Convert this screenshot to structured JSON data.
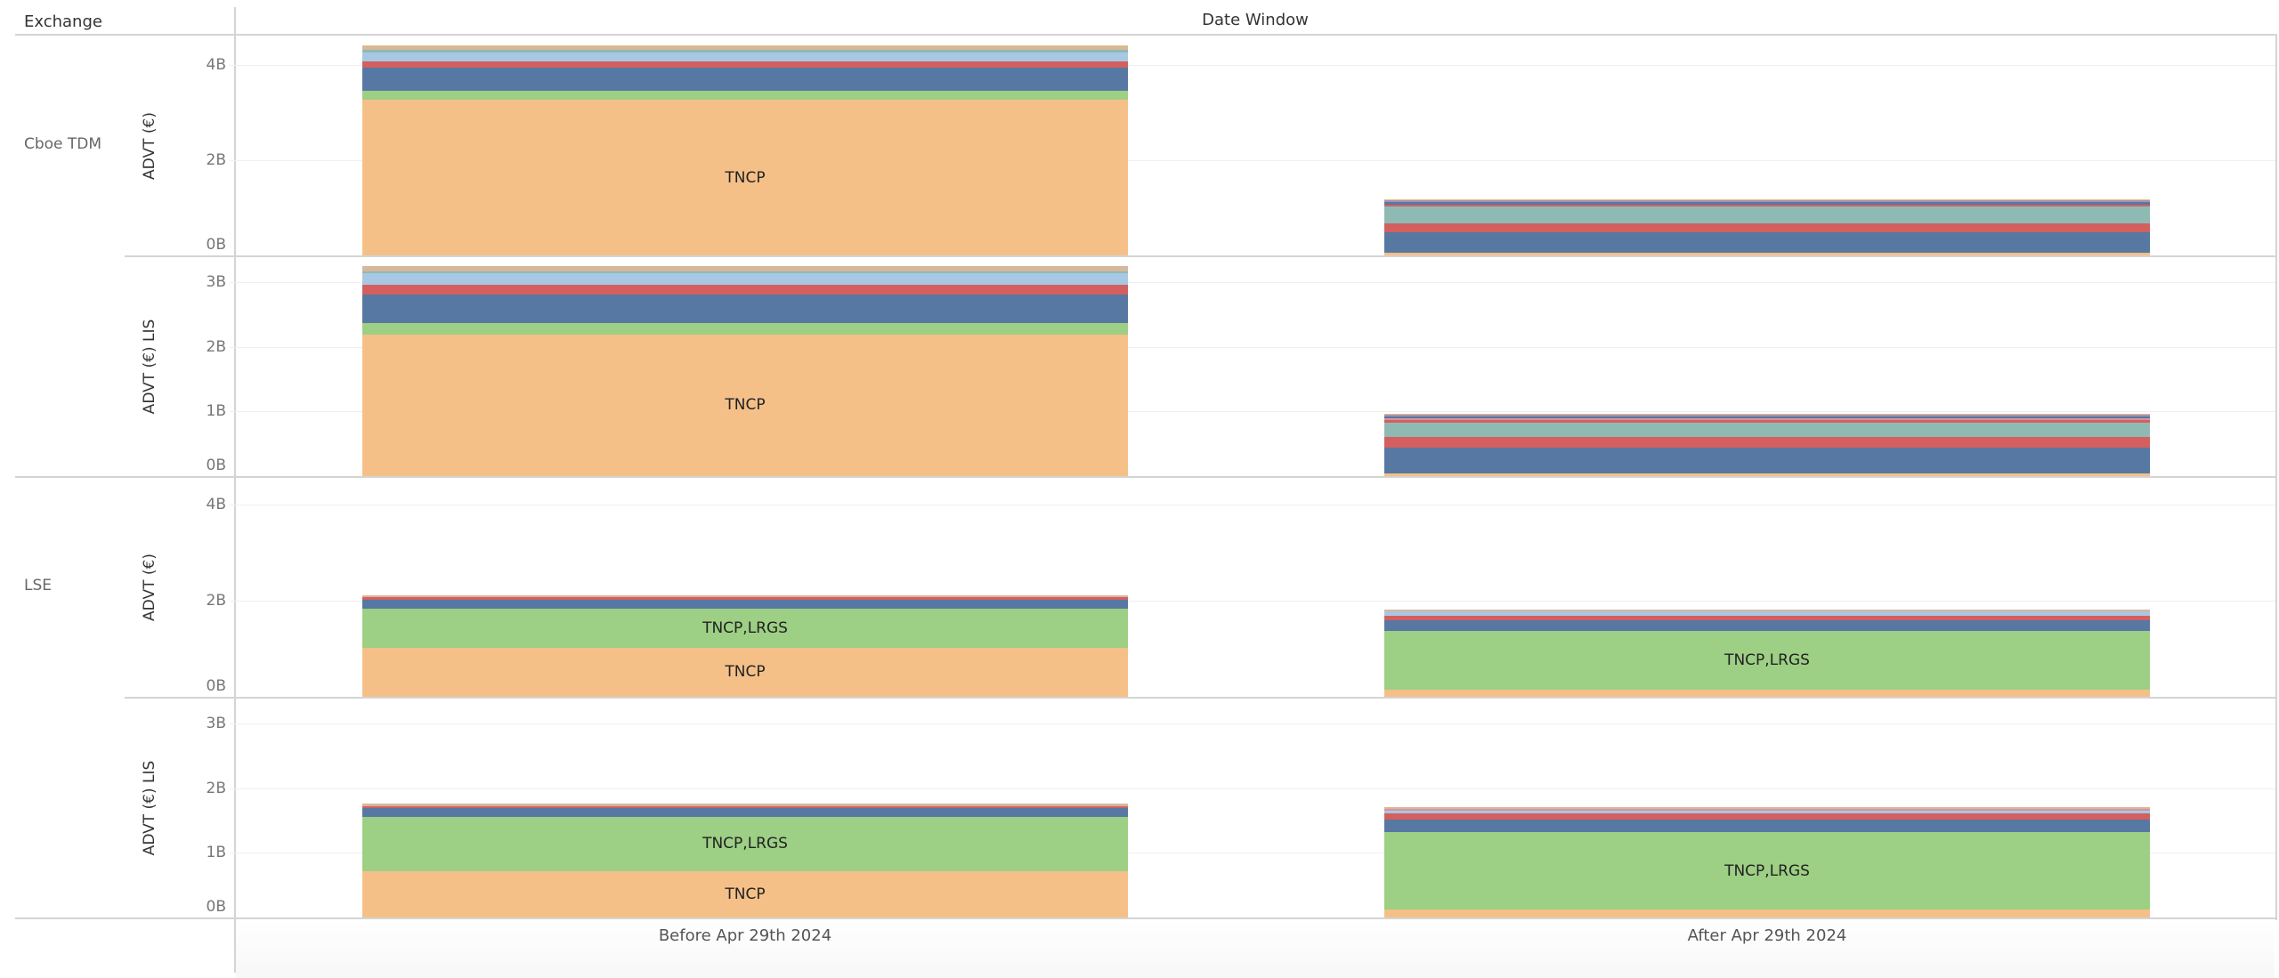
{
  "header": {
    "exchange_label": "Exchange",
    "date_window_label": "Date Window"
  },
  "colors": {
    "TNCP": "#f5c088",
    "TNCP,LRGS": "#9dcf84",
    "blue": "#5778a2",
    "red": "#d35f5f",
    "lightblue": "#a7c8e3",
    "teal": "#8fbab4",
    "tan": "#d6b79c",
    "gold": "#e4c372",
    "purple": "#a48fbf",
    "pink": "#d9939c"
  },
  "chart_data": {
    "type": "bar",
    "stacked": true,
    "title": "",
    "xlabel": "Date Window",
    "categories": [
      "Before Apr 29th 2024",
      "After Apr 29th 2024"
    ],
    "rows": [
      {
        "exchange": "Cboe TDM",
        "measure": "ADVT (€)",
        "ylim": [
          0,
          4.4
        ],
        "ticks": [
          "0B",
          "2B",
          "4B"
        ],
        "tick_values": [
          0,
          2,
          4
        ],
        "stacks": [
          {
            "category": "Before Apr 29th 2024",
            "segments": [
              {
                "key": "TNCP",
                "value": 3.27,
                "label": "TNCP"
              },
              {
                "key": "TNCP,LRGS",
                "value": 0.19
              },
              {
                "key": "blue",
                "value": 0.49
              },
              {
                "key": "red",
                "value": 0.13
              },
              {
                "key": "lightblue",
                "value": 0.19
              },
              {
                "key": "teal",
                "value": 0.04
              },
              {
                "key": "tan",
                "value": 0.09
              },
              {
                "key": "gold",
                "value": 0.02
              }
            ]
          },
          {
            "category": "After Apr 29th 2024",
            "segments": [
              {
                "key": "TNCP",
                "value": 0.06
              },
              {
                "key": "blue",
                "value": 0.43
              },
              {
                "key": "red",
                "value": 0.19
              },
              {
                "key": "teal",
                "value": 0.34
              },
              {
                "key": "red",
                "value": 0.04
              },
              {
                "key": "blue",
                "value": 0.06
              },
              {
                "key": "purple",
                "value": 0.03
              },
              {
                "key": "gold",
                "value": 0.02
              }
            ]
          }
        ]
      },
      {
        "exchange": "",
        "measure": "ADVT (€) LIS",
        "ylim": [
          0,
          3.3
        ],
        "ticks": [
          "0B",
          "1B",
          "2B",
          "3B"
        ],
        "tick_values": [
          0,
          1,
          2,
          3
        ],
        "stacks": [
          {
            "category": "Before Apr 29th 2024",
            "segments": [
              {
                "key": "TNCP",
                "value": 2.19,
                "label": "TNCP"
              },
              {
                "key": "TNCP,LRGS",
                "value": 0.18
              },
              {
                "key": "blue",
                "value": 0.44
              },
              {
                "key": "red",
                "value": 0.15
              },
              {
                "key": "lightblue",
                "value": 0.17
              },
              {
                "key": "teal",
                "value": 0.04
              },
              {
                "key": "tan",
                "value": 0.07
              }
            ]
          },
          {
            "category": "After Apr 29th 2024",
            "segments": [
              {
                "key": "TNCP",
                "value": 0.04
              },
              {
                "key": "blue",
                "value": 0.4
              },
              {
                "key": "red",
                "value": 0.17
              },
              {
                "key": "teal",
                "value": 0.22
              },
              {
                "key": "red",
                "value": 0.03
              },
              {
                "key": "pink",
                "value": 0.03
              },
              {
                "key": "blue",
                "value": 0.03
              },
              {
                "key": "purple",
                "value": 0.03
              },
              {
                "key": "gold",
                "value": 0.01
              }
            ]
          }
        ]
      },
      {
        "exchange": "LSE",
        "measure": "ADVT (€)",
        "ylim": [
          0,
          4.4
        ],
        "ticks": [
          "0B",
          "2B",
          "4B"
        ],
        "tick_values": [
          0,
          2,
          4
        ],
        "stacks": [
          {
            "category": "Before Apr 29th 2024",
            "segments": [
              {
                "key": "TNCP",
                "value": 1.02,
                "label": "TNCP"
              },
              {
                "key": "TNCP,LRGS",
                "value": 0.81,
                "label": "TNCP,LRGS"
              },
              {
                "key": "blue",
                "value": 0.19
              },
              {
                "key": "red",
                "value": 0.05
              },
              {
                "key": "tan",
                "value": 0.04
              }
            ]
          },
          {
            "category": "After Apr 29th 2024",
            "segments": [
              {
                "key": "TNCP",
                "value": 0.15
              },
              {
                "key": "TNCP,LRGS",
                "value": 1.22,
                "label": "TNCP,LRGS"
              },
              {
                "key": "blue",
                "value": 0.22
              },
              {
                "key": "red",
                "value": 0.09
              },
              {
                "key": "lightblue",
                "value": 0.09
              },
              {
                "key": "tan",
                "value": 0.04
              }
            ]
          }
        ]
      },
      {
        "exchange": "",
        "measure": "ADVT (€) LIS",
        "ylim": [
          0,
          3.3
        ],
        "ticks": [
          "0B",
          "1B",
          "2B",
          "3B"
        ],
        "tick_values": [
          0,
          1,
          2,
          3
        ],
        "stacks": [
          {
            "category": "Before Apr 29th 2024",
            "segments": [
              {
                "key": "TNCP",
                "value": 0.72,
                "label": "TNCP"
              },
              {
                "key": "TNCP,LRGS",
                "value": 0.83,
                "label": "TNCP,LRGS"
              },
              {
                "key": "blue",
                "value": 0.14
              },
              {
                "key": "red",
                "value": 0.03
              },
              {
                "key": "tan",
                "value": 0.04
              }
            ]
          },
          {
            "category": "After Apr 29th 2024",
            "segments": [
              {
                "key": "TNCP",
                "value": 0.12
              },
              {
                "key": "TNCP,LRGS",
                "value": 1.2,
                "label": "TNCP,LRGS"
              },
              {
                "key": "blue",
                "value": 0.19
              },
              {
                "key": "red",
                "value": 0.1
              },
              {
                "key": "lightblue",
                "value": 0.04
              },
              {
                "key": "pink",
                "value": 0.03
              },
              {
                "key": "tan",
                "value": 0.03
              }
            ]
          }
        ]
      }
    ]
  }
}
